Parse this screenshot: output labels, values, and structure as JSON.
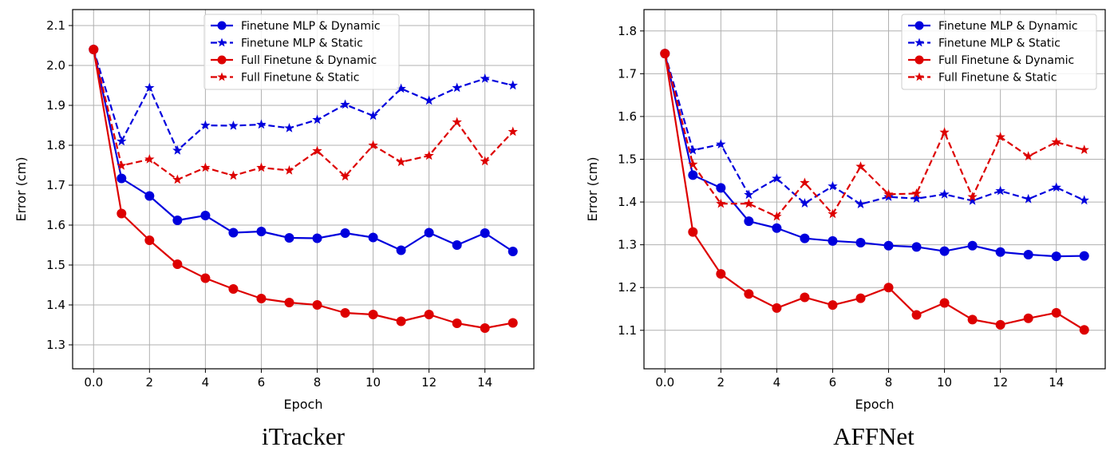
{
  "chart_data": [
    {
      "type": "line",
      "caption": "iTracker",
      "xlabel": "Epoch",
      "ylabel": "Error (cm)",
      "xlim": [
        -0.75,
        15.75
      ],
      "ylim": [
        1.24,
        2.14
      ],
      "xticks": [
        0,
        2,
        4,
        6,
        8,
        10,
        12,
        14
      ],
      "yticks": [
        1.3,
        1.4,
        1.5,
        1.6,
        1.7,
        1.8,
        1.9,
        2.0,
        2.1
      ],
      "grid": true,
      "legend_position": "top-right",
      "x": [
        0,
        1,
        2,
        3,
        4,
        5,
        6,
        7,
        8,
        9,
        10,
        11,
        12,
        13,
        14,
        15
      ],
      "series": [
        {
          "name": "Finetune MLP & Dynamic",
          "color": "#0000dd",
          "marker": "circle",
          "linestyle": "solid",
          "values": [
            2.04,
            1.717,
            1.673,
            1.612,
            1.624,
            1.581,
            1.584,
            1.568,
            1.567,
            1.58,
            1.569,
            1.537,
            1.581,
            1.55,
            1.58,
            1.534
          ]
        },
        {
          "name": "Finetune MLP & Static",
          "color": "#0000dd",
          "marker": "star",
          "linestyle": "dashed",
          "values": [
            2.04,
            1.81,
            1.944,
            1.787,
            1.85,
            1.849,
            1.852,
            1.843,
            1.864,
            1.902,
            1.874,
            1.942,
            1.912,
            1.944,
            1.967,
            1.95
          ]
        },
        {
          "name": "Full Finetune & Dynamic",
          "color": "#dd0000",
          "marker": "circle",
          "linestyle": "solid",
          "values": [
            2.04,
            1.629,
            1.562,
            1.502,
            1.467,
            1.44,
            1.416,
            1.406,
            1.4,
            1.38,
            1.376,
            1.359,
            1.376,
            1.354,
            1.342,
            1.355
          ]
        },
        {
          "name": "Full Finetune & Static",
          "color": "#dd0000",
          "marker": "star",
          "linestyle": "dashed",
          "values": [
            2.04,
            1.749,
            1.765,
            1.714,
            1.744,
            1.724,
            1.744,
            1.737,
            1.786,
            1.722,
            1.8,
            1.758,
            1.774,
            1.858,
            1.76,
            1.834
          ]
        }
      ]
    },
    {
      "type": "line",
      "caption": "AFFNet",
      "xlabel": "Epoch",
      "ylabel": "Error (cm)",
      "xlim": [
        -0.75,
        15.75
      ],
      "ylim": [
        1.01,
        1.85
      ],
      "xticks": [
        0,
        2,
        4,
        6,
        8,
        10,
        12,
        14
      ],
      "yticks": [
        1.1,
        1.2,
        1.3,
        1.4,
        1.5,
        1.6,
        1.7,
        1.8
      ],
      "grid": true,
      "legend_position": "top-right",
      "x": [
        0,
        1,
        2,
        3,
        4,
        5,
        6,
        7,
        8,
        9,
        10,
        11,
        12,
        13,
        14,
        15
      ],
      "series": [
        {
          "name": "Finetune MLP & Dynamic",
          "color": "#0000dd",
          "marker": "circle",
          "linestyle": "solid",
          "values": [
            1.747,
            1.463,
            1.433,
            1.355,
            1.339,
            1.315,
            1.309,
            1.305,
            1.298,
            1.295,
            1.285,
            1.298,
            1.283,
            1.277,
            1.273,
            1.274
          ]
        },
        {
          "name": "Finetune MLP & Static",
          "color": "#0000dd",
          "marker": "star",
          "linestyle": "dashed",
          "values": [
            1.747,
            1.521,
            1.535,
            1.417,
            1.455,
            1.397,
            1.437,
            1.395,
            1.412,
            1.408,
            1.418,
            1.403,
            1.426,
            1.407,
            1.434,
            1.404
          ]
        },
        {
          "name": "Full Finetune & Dynamic",
          "color": "#dd0000",
          "marker": "circle",
          "linestyle": "solid",
          "values": [
            1.747,
            1.33,
            1.232,
            1.185,
            1.152,
            1.177,
            1.159,
            1.175,
            1.2,
            1.136,
            1.164,
            1.125,
            1.113,
            1.128,
            1.141,
            1.101
          ]
        },
        {
          "name": "Full Finetune & Static",
          "color": "#dd0000",
          "marker": "star",
          "linestyle": "dashed",
          "values": [
            1.747,
            1.488,
            1.396,
            1.396,
            1.366,
            1.445,
            1.372,
            1.483,
            1.418,
            1.42,
            1.563,
            1.412,
            1.552,
            1.507,
            1.54,
            1.522
          ]
        }
      ]
    }
  ]
}
